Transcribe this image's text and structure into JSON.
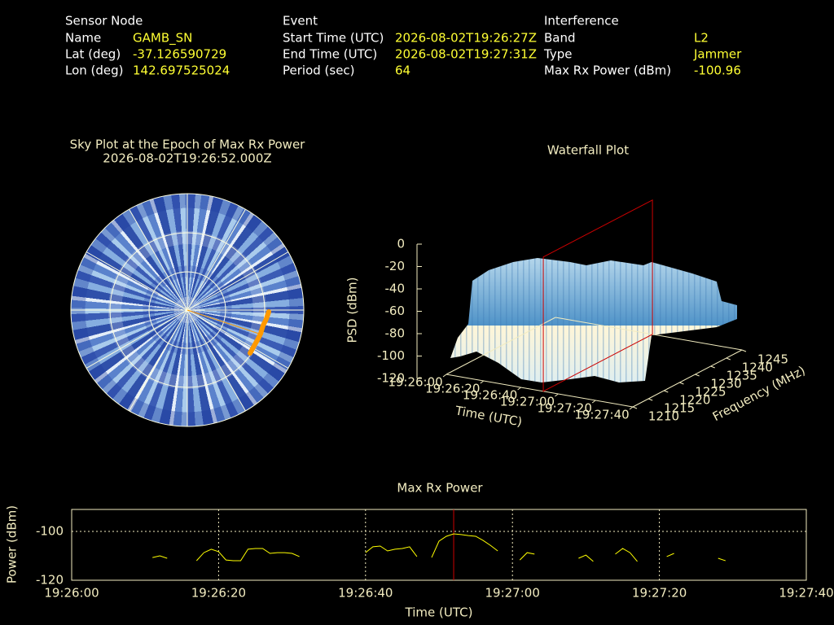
{
  "header": {
    "sensor_node": {
      "title": "Sensor Node",
      "fields": [
        {
          "label": "Name",
          "value": "GAMB_SN"
        },
        {
          "label": "Lat (deg)",
          "value": -37.126590729
        },
        {
          "label": "Lon (deg)",
          "value": 142.697525024
        }
      ]
    },
    "event": {
      "title": "Event",
      "fields": [
        {
          "label": "Start Time (UTC)",
          "value": "2026-08-02T19:26:27Z"
        },
        {
          "label": "End Time (UTC)",
          "value": "2026-08-02T19:27:31Z"
        },
        {
          "label": "Period (sec)",
          "value": 64
        }
      ]
    },
    "interference": {
      "title": "Interference",
      "fields": [
        {
          "label": "Band",
          "value": "L2"
        },
        {
          "label": "Type",
          "value": "Jammer"
        },
        {
          "label": "Max Rx Power (dBm)",
          "value": -100.96
        }
      ]
    }
  },
  "chart_data": [
    {
      "type": "polar",
      "title": "Sky Plot at the Epoch of Max Rx Power",
      "subtitle": "2026-08-02T19:26:52.000Z"
    },
    {
      "type": "surface",
      "title": "Waterfall Plot",
      "xlabel": "Time (UTC)",
      "ylabel": "Frequency (MHz)",
      "zlabel": "PSD (dBm)",
      "xlim": [
        "19:26:00",
        "19:27:40"
      ],
      "xticks": [
        "19:26:00",
        "19:26:20",
        "19:26:40",
        "19:27:00",
        "19:27:20",
        "19:27:40"
      ],
      "ylim": [
        1210,
        1245
      ],
      "yticks": [
        1210,
        1215,
        1220,
        1225,
        1230,
        1235,
        1240,
        1245
      ],
      "zlim": [
        -120,
        0
      ],
      "zticks": [
        0,
        -20,
        -40,
        -60,
        -80,
        -100,
        -120
      ],
      "marker": "19:26:52",
      "marker_color": "#cc0000"
    },
    {
      "type": "line",
      "title": "Max Rx Power",
      "xlabel": "Time (UTC)",
      "ylabel": "Power (dBm)",
      "xlim": [
        "19:26:00",
        "19:27:40"
      ],
      "xticks": [
        "19:26:00",
        "19:26:20",
        "19:26:40",
        "19:27:00",
        "19:27:20",
        "19:27:40"
      ],
      "ylim": [
        -120,
        -91
      ],
      "yticks": [
        -120,
        -100
      ],
      "grid": true,
      "color": "#ffff00",
      "marker": "19:26:52",
      "marker_color": "#cc0000",
      "x": [
        "19:26:11",
        "19:26:12",
        "19:26:13",
        "19:26:15",
        "19:26:17",
        "19:26:18",
        "19:26:19",
        "19:26:20",
        "19:26:21",
        "19:26:22",
        "19:26:23",
        "19:26:24",
        "19:26:25",
        "19:26:26",
        "19:26:27",
        "19:26:28",
        "19:26:29",
        "19:26:30",
        "19:26:31",
        "19:26:35",
        "19:26:40",
        "19:26:41",
        "19:26:42",
        "19:26:43",
        "19:26:44",
        "19:26:45",
        "19:26:46",
        "19:26:47",
        "19:26:48",
        "19:26:49",
        "19:26:50",
        "19:26:51",
        "19:26:52",
        "19:26:53",
        "19:26:54",
        "19:26:55",
        "19:26:56",
        "19:26:57",
        "19:26:58",
        "19:27:00",
        "19:27:01",
        "19:27:02",
        "19:27:03",
        "19:27:06",
        "19:27:09",
        "19:27:10",
        "19:27:11",
        "19:27:13",
        "19:27:14",
        "19:27:15",
        "19:27:16",
        "19:27:17",
        "19:27:19",
        "19:27:21",
        "19:27:22",
        "19:27:25",
        "19:27:28",
        "19:27:29"
      ],
      "values": [
        -110.7,
        -110,
        -111,
        null,
        -112,
        -108.7,
        -107.3,
        -108.3,
        -111.7,
        -112,
        -112,
        -107.3,
        -107,
        -107,
        -109,
        -108.7,
        -108.7,
        -109,
        -110.3,
        null,
        -108.7,
        -106.3,
        -106,
        -108,
        -107.3,
        -107,
        -106.3,
        -110.3,
        null,
        -110.7,
        -104,
        -102,
        -101,
        -101.3,
        -101.7,
        -102,
        -103.7,
        -105.7,
        -108,
        null,
        -111.7,
        -108.7,
        -109.3,
        null,
        -111,
        -109.7,
        -112.3,
        null,
        -109.3,
        -107,
        -108.7,
        -112.3,
        null,
        -110.3,
        -109,
        null,
        -111,
        -112
      ]
    }
  ]
}
